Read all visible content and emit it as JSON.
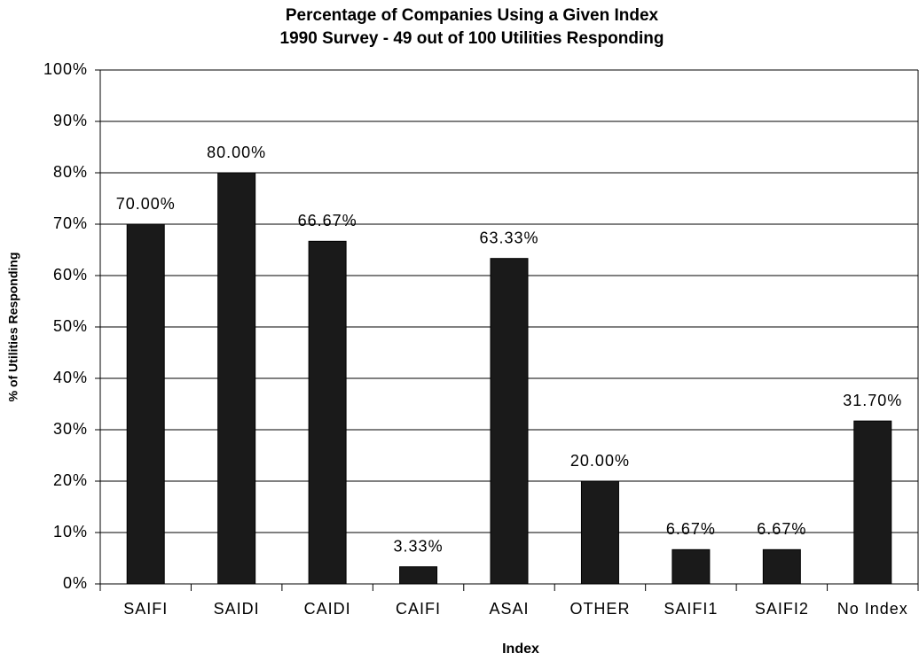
{
  "chart_data": {
    "type": "bar",
    "title": "Percentage of Companies Using a Given Index",
    "subtitle": "1990 Survey - 49 out of 100 Utilities Responding",
    "x_label": "Index",
    "y_label": "% of Utilities Responding",
    "categories": [
      "SAIFI",
      "SAIDI",
      "CAIDI",
      "CAIFI",
      "ASAI",
      "OTHER",
      "SAIFI1",
      "SAIFI2",
      "No Index"
    ],
    "values": [
      70,
      80,
      66.67,
      3.33,
      63.33,
      20,
      6.67,
      6.67,
      31.7
    ],
    "value_labels": [
      "70.00%",
      "80.00%",
      "66.67%",
      "3.33%",
      "63.33%",
      "20.00%",
      "6.67%",
      "6.67%",
      "31.70%"
    ],
    "color": "#1a1a1a",
    "ylim": [
      0,
      100
    ],
    "yticks": [
      {
        "value": 0,
        "label": "0%"
      },
      {
        "value": 10,
        "label": "10%"
      },
      {
        "value": 20,
        "label": "20%"
      },
      {
        "value": 30,
        "label": "30%"
      },
      {
        "value": 40,
        "label": "40%"
      },
      {
        "value": 50,
        "label": "50%"
      },
      {
        "value": 60,
        "label": "60%"
      },
      {
        "value": 70,
        "label": "70%"
      },
      {
        "value": 80,
        "label": "80%"
      },
      {
        "value": 90,
        "label": "90%"
      },
      {
        "value": 100,
        "label": "100%"
      }
    ],
    "grid": true
  }
}
